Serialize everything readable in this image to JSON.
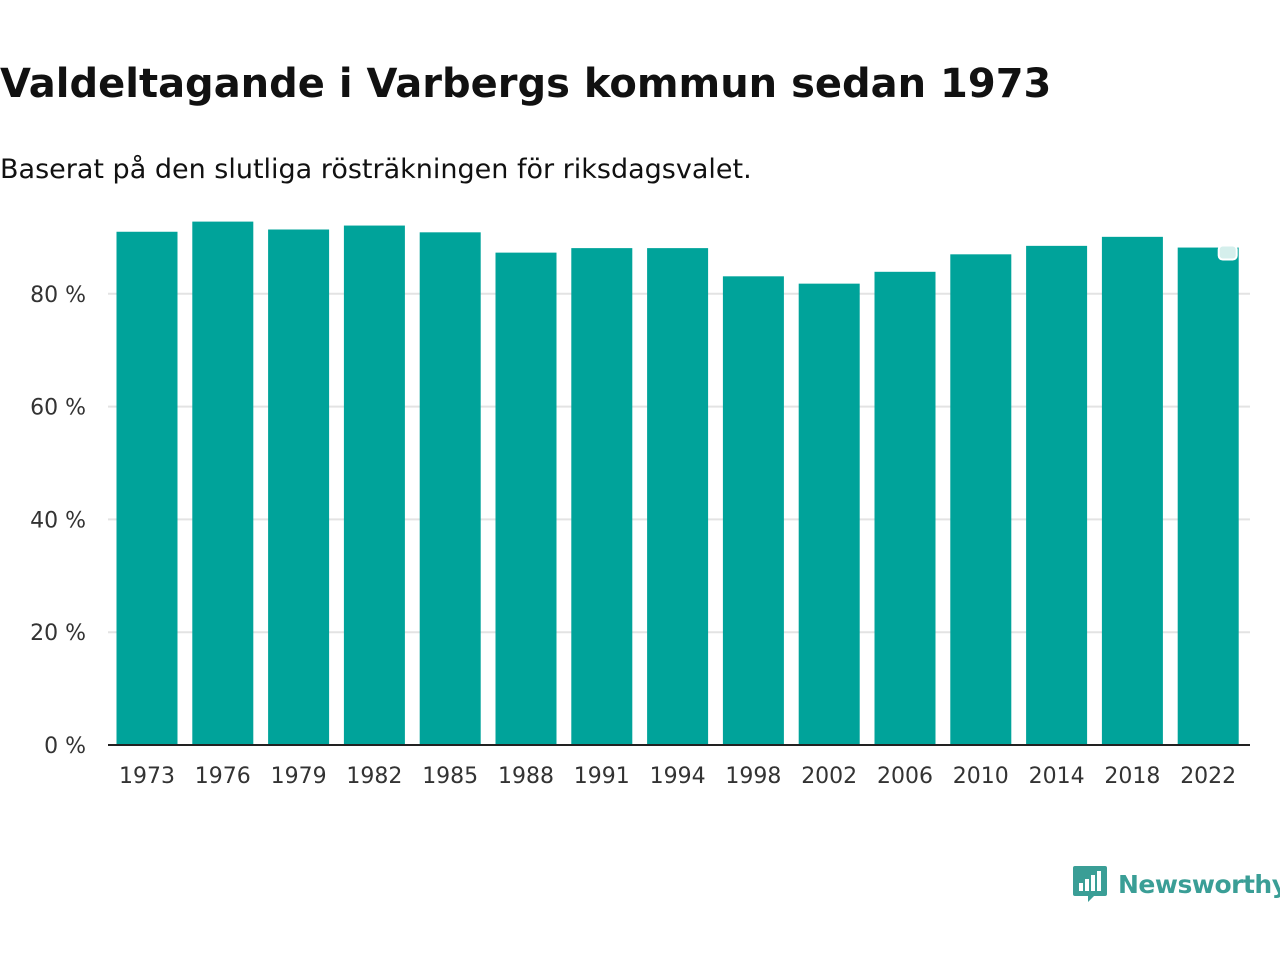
{
  "chart_data": {
    "type": "bar",
    "title": "Valdeltagande i Varbergs kommun sedan 1973",
    "subtitle": "Baserat på den slutliga rösträkningen för riksdagsvalet.",
    "xlabel": "",
    "ylabel": "",
    "categories": [
      "1973",
      "1976",
      "1979",
      "1982",
      "1985",
      "1988",
      "1991",
      "1994",
      "1998",
      "2002",
      "2006",
      "2010",
      "2014",
      "2018",
      "2022"
    ],
    "values": [
      91.0,
      92.8,
      91.4,
      92.1,
      90.9,
      87.3,
      88.1,
      88.1,
      83.1,
      81.8,
      83.9,
      87.0,
      88.5,
      90.1,
      88.2
    ],
    "yticks": [
      0,
      20,
      40,
      60,
      80
    ],
    "ytick_labels": [
      "0 %",
      "20 %",
      "40 %",
      "60 %",
      "80 %"
    ],
    "ylim": [
      0,
      100
    ],
    "grid": true,
    "bar_color": "#00a39a"
  },
  "brand": {
    "name": "Newsworthy",
    "icon": "newsworthy-logo-icon",
    "color": "#3a9e96"
  }
}
